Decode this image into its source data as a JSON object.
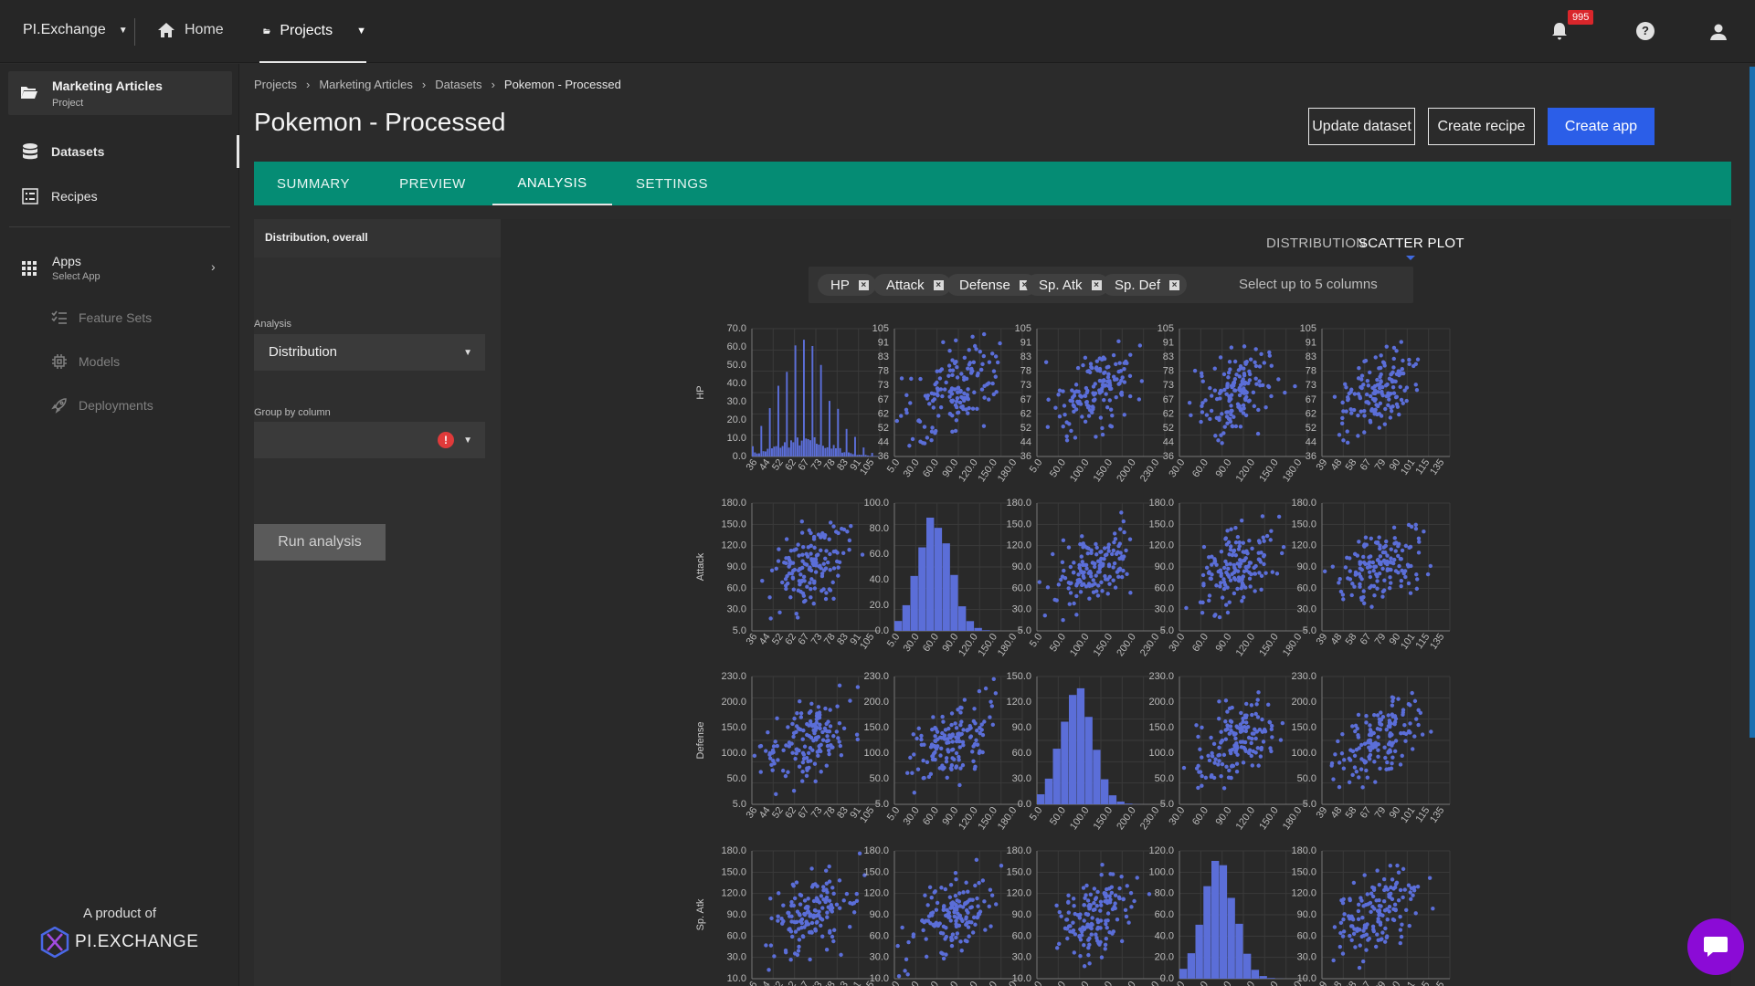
{
  "topbar": {
    "brand": "PI.Exchange",
    "home": "Home",
    "projects": "Projects",
    "notifications": "995"
  },
  "sidebar": {
    "project_name": "Marketing Articles",
    "project_sub": "Project",
    "items": [
      {
        "label": "Datasets",
        "icon": "database-icon"
      },
      {
        "label": "Recipes",
        "icon": "list-icon"
      }
    ],
    "apps_title": "Apps",
    "apps_sub": "Select App",
    "sub_items": [
      {
        "label": "Feature Sets",
        "icon": "feature-list-icon"
      },
      {
        "label": "Models",
        "icon": "model-chip-icon"
      },
      {
        "label": "Deployments",
        "icon": "rocket-icon"
      }
    ],
    "product_text": "A product of",
    "logo_text": "PI.EXCHANGE"
  },
  "breadcrumb": [
    "Projects",
    "Marketing Articles",
    "Datasets",
    "Pokemon - Processed"
  ],
  "page_title": "Pokemon - Processed",
  "buttons": {
    "update": "Update dataset",
    "create_recipe": "Create recipe",
    "create_app": "Create app"
  },
  "tabs": [
    "SUMMARY",
    "PREVIEW",
    "ANALYSIS",
    "SETTINGS"
  ],
  "active_tab": "ANALYSIS",
  "left_panel": {
    "header": "Distribution, overall",
    "analysis_label": "Analysis",
    "analysis_value": "Distribution",
    "group_label": "Group by column",
    "group_value": "",
    "run_label": "Run analysis"
  },
  "view_toggle": {
    "distribution": "DISTRIBUTION",
    "scatter": "SCATTER PLOT",
    "active": "SCATTER PLOT"
  },
  "columns": {
    "chips": [
      "HP",
      "Attack",
      "Defense",
      "Sp. Atk",
      "Sp. Def"
    ],
    "hint": "Select up to 5 columns"
  },
  "colors": {
    "teal": "#058c74",
    "primary": "#2b5ee8",
    "plot": "#5b6ed8",
    "badge": "#d9262b",
    "chat": "#8b0bd6"
  },
  "chart_data": {
    "type": "scatter",
    "variables": [
      "HP",
      "Attack",
      "Defense",
      "Sp. Atk",
      "Sp. Def"
    ],
    "row_labels": [
      "HP",
      "Attack",
      "Defense",
      "Sp. Atk"
    ],
    "y_ticks": {
      "HP_hist": [
        "70.0",
        "60.0",
        "50.0",
        "40.0",
        "30.0",
        "20.0",
        "10.0",
        "0.0"
      ],
      "HP": [
        "105",
        "91",
        "83",
        "78",
        "73",
        "67",
        "62",
        "52",
        "44",
        "36"
      ],
      "Attack_hist": [
        "100.0",
        "80.0",
        "60.0",
        "40.0",
        "20.0",
        "0.0"
      ],
      "Attack": [
        "180.0",
        "150.0",
        "120.0",
        "90.0",
        "60.0",
        "30.0",
        "5.0"
      ],
      "Defense_hist": [
        "150.0",
        "120.0",
        "90.0",
        "60.0",
        "30.0",
        "0.0"
      ],
      "Defense": [
        "230.0",
        "200.0",
        "150.0",
        "100.0",
        "50.0",
        "5.0"
      ],
      "SpAtk_hist": [
        "120.0",
        "100.0",
        "80.0",
        "60.0",
        "40.0",
        "20.0",
        "0.0"
      ],
      "SpAtk": [
        "180.0",
        "150.0",
        "120.0",
        "90.0",
        "60.0",
        "30.0",
        "10.0"
      ]
    },
    "x_ticks": {
      "HP": [
        "36",
        "44",
        "52",
        "62",
        "67",
        "73",
        "78",
        "83",
        "91",
        "105"
      ],
      "Attack": [
        "5.0",
        "30.0",
        "60.0",
        "90.0",
        "120.0",
        "150.0",
        "180.0"
      ],
      "Defense": [
        "5.0",
        "50.0",
        "100.0",
        "150.0",
        "200.0",
        "230.0"
      ],
      "SpAtk": [
        "30.0",
        "60.0",
        "90.0",
        "120.0",
        "150.0",
        "180.0"
      ],
      "SpDef": [
        "39",
        "48",
        "58",
        "67",
        "79",
        "90",
        "101",
        "115",
        "135"
      ]
    }
  }
}
